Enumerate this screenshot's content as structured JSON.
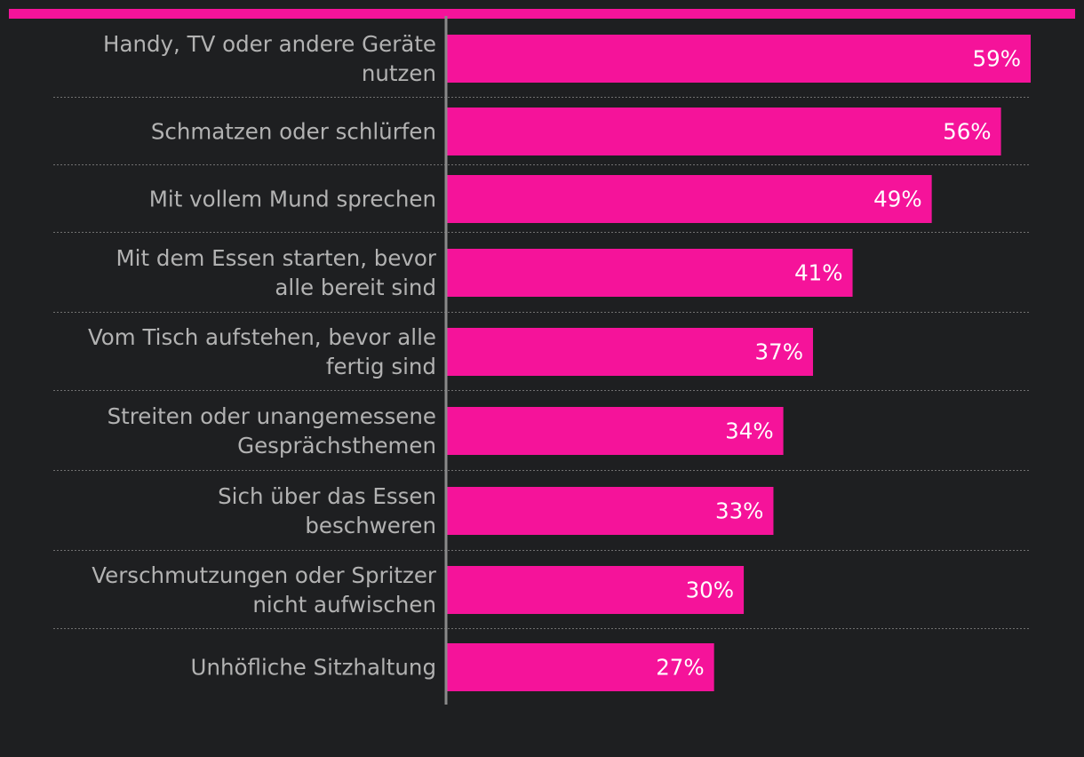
{
  "colors": {
    "background": "#1e1f21",
    "accent": "#f5139a",
    "bar": "#f5139a",
    "category_text": "#b2b2b2",
    "value_text": "#ffffff"
  },
  "chart_data": {
    "type": "bar",
    "orientation": "horizontal",
    "title": "",
    "xlabel": "",
    "ylabel": "",
    "xlim": [
      0,
      60
    ],
    "grid": false,
    "value_suffix": "%",
    "categories": [
      [
        "Handy, TV oder andere Geräte",
        "nutzen"
      ],
      [
        "Schmatzen oder schlürfen"
      ],
      [
        "Mit vollem Mund sprechen"
      ],
      [
        "Mit dem Essen starten, bevor",
        "alle bereit sind"
      ],
      [
        "Vom Tisch aufstehen, bevor alle",
        "fertig sind"
      ],
      [
        "Streiten oder unangemessene",
        "Gesprächsthemen"
      ],
      [
        "Sich über das Essen",
        "beschweren"
      ],
      [
        "Verschmutzungen oder Spritzer",
        "nicht aufwischen"
      ],
      [
        "Unhöfliche Sitzhaltung"
      ]
    ],
    "values": [
      59,
      56,
      49,
      41,
      37,
      34,
      33,
      30,
      27
    ],
    "value_labels": [
      "59%",
      "56%",
      "49%",
      "41%",
      "37%",
      "34%",
      "33%",
      "30%",
      "27%"
    ]
  }
}
